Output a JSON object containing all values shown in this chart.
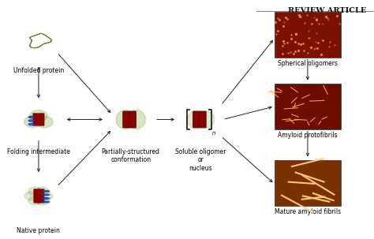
{
  "title": "REVIEW ARTICLE",
  "background_color": "#ffffff",
  "fig_width": 4.74,
  "fig_height": 3.03,
  "labels": {
    "unfolded": "Unfolded protein",
    "folding": "Folding intermediate",
    "native": "Native protein",
    "partially": "Partially-structured\nconformation",
    "soluble": "Soluble oligomer\nor\nnucleus",
    "spherical": "Spherical oligomers",
    "amyloid_proto": "Amyloid protofibrils",
    "mature": "Mature amyloid fibrils"
  },
  "label_fontsize": 5.5,
  "title_fontsize": 7,
  "arrow_color": "#222222",
  "border_color": "#888888",
  "micro_colors": {
    "spherical_bg": "#8B1A00",
    "proto_bg": "#7B1200",
    "mature_bg": "#8B3A00"
  }
}
